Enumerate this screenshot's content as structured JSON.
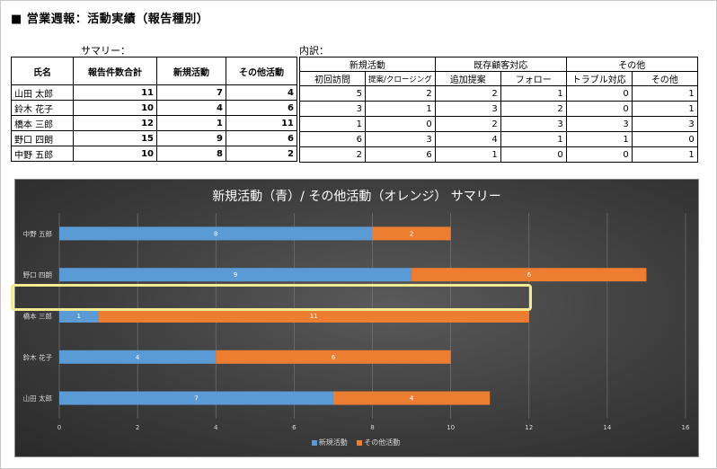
{
  "page_title": "■ 営業週報：活動実績（報告種別）",
  "summary_label": "サマリー：",
  "detail_label": "内訳：",
  "summary": {
    "headers": [
      "氏名",
      "報告件数合計",
      "新規活動",
      "その他活動"
    ],
    "rows": [
      {
        "name": "山田 太郎",
        "total": "11",
        "new": "7",
        "other": "4"
      },
      {
        "name": "鈴木 花子",
        "total": "10",
        "new": "4",
        "other": "6"
      },
      {
        "name": "橋本 三郎",
        "total": "12",
        "new": "1",
        "other": "11"
      },
      {
        "name": "野口 四朗",
        "total": "15",
        "new": "9",
        "other": "6"
      },
      {
        "name": "中野 五郎",
        "total": "10",
        "new": "8",
        "other": "2"
      }
    ]
  },
  "detail": {
    "groups": [
      "新規活動",
      "既存顧客対応",
      "その他"
    ],
    "subheaders": [
      "初回訪問",
      "提案/クロージング",
      "追加提案",
      "フォロー",
      "トラブル対応",
      "その他"
    ],
    "rows": [
      [
        "5",
        "2",
        "2",
        "1",
        "0",
        "1"
      ],
      [
        "3",
        "1",
        "3",
        "2",
        "0",
        "1"
      ],
      [
        "1",
        "0",
        "2",
        "3",
        "3",
        "3"
      ],
      [
        "6",
        "3",
        "4",
        "1",
        "1",
        "0"
      ],
      [
        "2",
        "6",
        "1",
        "0",
        "0",
        "1"
      ]
    ]
  },
  "colors": {
    "blue": "#5b9bd5",
    "orange": "#ed7d31",
    "highlight": "#f4ea91"
  },
  "chart_data": {
    "type": "bar",
    "orientation": "horizontal",
    "stacked": true,
    "title": "新規活動（青）/ その他活動（オレンジ） サマリー",
    "categories": [
      "中野 五郎",
      "野口 四朗",
      "橋本 三郎",
      "鈴木 花子",
      "山田 太郎"
    ],
    "series": [
      {
        "name": "新規活動",
        "values": [
          8,
          9,
          1,
          4,
          7
        ],
        "color": "#5b9bd5"
      },
      {
        "name": "その他活動",
        "values": [
          2,
          6,
          11,
          6,
          4
        ],
        "color": "#ed7d31"
      }
    ],
    "xlim": [
      0,
      16
    ],
    "xticks": [
      "0",
      "2",
      "4",
      "6",
      "8",
      "10",
      "12",
      "14",
      "16"
    ],
    "grid": true,
    "legend": "bottom",
    "highlighted_category": "橋本 三郎"
  }
}
